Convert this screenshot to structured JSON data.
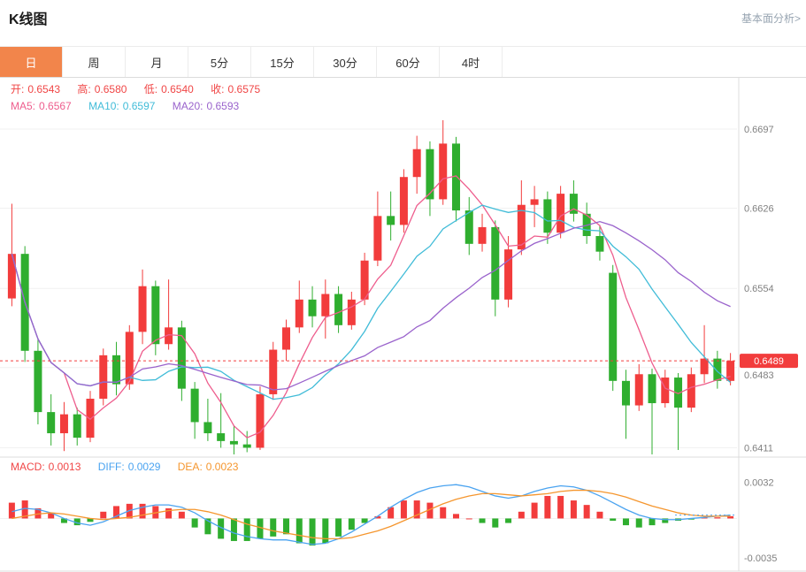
{
  "header": {
    "title": "K线图",
    "link": "基本面分析>"
  },
  "tabs": {
    "active_index": 0,
    "items": [
      {
        "label": "日"
      },
      {
        "label": "周"
      },
      {
        "label": "月"
      },
      {
        "label": "5分"
      },
      {
        "label": "15分"
      },
      {
        "label": "30分"
      },
      {
        "label": "60分"
      },
      {
        "label": "4时"
      }
    ]
  },
  "info": {
    "ohlc": [
      {
        "label": "开:",
        "value": "0.6543"
      },
      {
        "label": "高:",
        "value": "0.6580"
      },
      {
        "label": "低:",
        "value": "0.6540"
      },
      {
        "label": "收:",
        "value": "0.6575"
      }
    ],
    "ma": [
      {
        "label": "MA5:",
        "value": "0.6567"
      },
      {
        "label": "MA10:",
        "value": "0.6597"
      },
      {
        "label": "MA20:",
        "value": "0.6593"
      }
    ]
  },
  "macd_info": [
    {
      "label": "MACD:",
      "value": "0.0013"
    },
    {
      "label": "DIFF:",
      "value": "0.0029"
    },
    {
      "label": "DEA:",
      "value": "0.0023"
    }
  ],
  "axis": {
    "main_labels": [
      "0.6697",
      "0.6626",
      "0.6554",
      "0.6483",
      "0.6411"
    ],
    "macd_labels": [
      "0.0032",
      "-0.0035"
    ],
    "last_price": "0.6489"
  },
  "colors": {
    "accent": "#f2854b",
    "up": "#f23c3c",
    "down": "#2fae2f",
    "price_badge": "#f23c3c",
    "ohlc_text": "#f04646",
    "ma5": "#ee5d8d",
    "ma10": "#41bcd8",
    "ma20": "#9a63cc",
    "diff": "#4aa3f0",
    "dea": "#f5962e",
    "axis_text": "#808080",
    "grid": "#f1f1f1",
    "border": "#dcdcdc",
    "link": "#97a4b1"
  },
  "chart_data": {
    "type": "candlestick",
    "title": "K线图",
    "legend": [
      "MA5",
      "MA10",
      "MA20"
    ],
    "ma_windows": [
      5,
      10,
      20
    ],
    "price_line": 0.6489,
    "y_axis_labels": [
      "0.6697",
      "0.6626",
      "0.6554",
      "0.6483",
      "0.6411"
    ],
    "y_domain": [
      0.6405,
      0.6724
    ],
    "ohlc": [
      [
        0.6545,
        0.663,
        0.6538,
        0.6585
      ],
      [
        0.6585,
        0.6592,
        0.6488,
        0.6498
      ],
      [
        0.6498,
        0.6508,
        0.6432,
        0.6443
      ],
      [
        0.6443,
        0.6459,
        0.6413,
        0.6424
      ],
      [
        0.6424,
        0.6452,
        0.6408,
        0.6441
      ],
      [
        0.6441,
        0.6447,
        0.6413,
        0.642
      ],
      [
        0.642,
        0.6462,
        0.6416,
        0.6455
      ],
      [
        0.6455,
        0.65,
        0.6449,
        0.6494
      ],
      [
        0.6494,
        0.6506,
        0.6458,
        0.6468
      ],
      [
        0.6468,
        0.6521,
        0.6463,
        0.6515
      ],
      [
        0.6515,
        0.6571,
        0.6504,
        0.6556
      ],
      [
        0.6556,
        0.6561,
        0.6494,
        0.6504
      ],
      [
        0.6504,
        0.6562,
        0.6499,
        0.6519
      ],
      [
        0.6519,
        0.6525,
        0.6453,
        0.6464
      ],
      [
        0.6464,
        0.647,
        0.6419,
        0.6434
      ],
      [
        0.6434,
        0.6455,
        0.6417,
        0.6424
      ],
      [
        0.6424,
        0.646,
        0.6411,
        0.6417
      ],
      [
        0.6417,
        0.6431,
        0.6405,
        0.6414
      ],
      [
        0.6414,
        0.6426,
        0.6407,
        0.6411
      ],
      [
        0.6411,
        0.6466,
        0.6409,
        0.6459
      ],
      [
        0.6459,
        0.6506,
        0.6454,
        0.6499
      ],
      [
        0.6499,
        0.6526,
        0.6489,
        0.6519
      ],
      [
        0.6519,
        0.6561,
        0.6514,
        0.6544
      ],
      [
        0.6544,
        0.6556,
        0.6519,
        0.6529
      ],
      [
        0.6529,
        0.6562,
        0.6509,
        0.6549
      ],
      [
        0.6549,
        0.6556,
        0.6514,
        0.6521
      ],
      [
        0.6521,
        0.6551,
        0.6517,
        0.6544
      ],
      [
        0.6544,
        0.6586,
        0.6539,
        0.6579
      ],
      [
        0.6579,
        0.6641,
        0.6574,
        0.6619
      ],
      [
        0.6619,
        0.6641,
        0.6597,
        0.6611
      ],
      [
        0.6611,
        0.6661,
        0.6604,
        0.6654
      ],
      [
        0.6654,
        0.6691,
        0.6639,
        0.6679
      ],
      [
        0.6679,
        0.6686,
        0.6619,
        0.6634
      ],
      [
        0.6634,
        0.6705,
        0.6629,
        0.6684
      ],
      [
        0.6684,
        0.669,
        0.6614,
        0.6624
      ],
      [
        0.6624,
        0.6636,
        0.6584,
        0.6594
      ],
      [
        0.6594,
        0.6621,
        0.6587,
        0.6609
      ],
      [
        0.6609,
        0.6615,
        0.6529,
        0.6544
      ],
      [
        0.6544,
        0.6601,
        0.6537,
        0.6589
      ],
      [
        0.6589,
        0.6651,
        0.6584,
        0.6629
      ],
      [
        0.6629,
        0.6646,
        0.6609,
        0.6634
      ],
      [
        0.6634,
        0.6641,
        0.6594,
        0.6604
      ],
      [
        0.6604,
        0.6646,
        0.6599,
        0.6639
      ],
      [
        0.6639,
        0.6651,
        0.6614,
        0.6621
      ],
      [
        0.6621,
        0.6631,
        0.6594,
        0.6601
      ],
      [
        0.6601,
        0.6611,
        0.6579,
        0.6587
      ],
      [
        0.6568,
        0.6575,
        0.6462,
        0.6471
      ],
      [
        0.6471,
        0.6481,
        0.6419,
        0.6449
      ],
      [
        0.6449,
        0.6486,
        0.6444,
        0.6477
      ],
      [
        0.6477,
        0.6482,
        0.6405,
        0.6451
      ],
      [
        0.6451,
        0.6481,
        0.6447,
        0.6474
      ],
      [
        0.6474,
        0.6478,
        0.6409,
        0.6447
      ],
      [
        0.6447,
        0.6483,
        0.6443,
        0.6477
      ],
      [
        0.6477,
        0.6521,
        0.6469,
        0.6491
      ],
      [
        0.6491,
        0.6498,
        0.6464,
        0.6471
      ],
      [
        0.6471,
        0.6496,
        0.6467,
        0.6489
      ]
    ],
    "macd": {
      "y_axis_labels": [
        "0.0032",
        "-0.0035"
      ],
      "y_domain": [
        -0.0042,
        0.0038
      ],
      "hist": [
        0.0014,
        0.0016,
        0.0009,
        0.0005,
        -0.0004,
        -0.0006,
        -0.0003,
        0.0006,
        0.0011,
        0.0013,
        0.0013,
        0.0011,
        0.0009,
        0.0006,
        -0.0008,
        -0.0014,
        -0.0018,
        -0.002,
        -0.002,
        -0.0018,
        -0.0016,
        -0.0014,
        -0.0022,
        -0.0024,
        -0.0022,
        -0.0016,
        -0.001,
        -0.0004,
        0.0002,
        0.001,
        0.0016,
        0.0016,
        0.0014,
        0.001,
        0.0004,
        0.0,
        -0.0004,
        -0.0008,
        -0.0004,
        0.0006,
        0.0014,
        0.002,
        0.002,
        0.0016,
        0.0012,
        0.0006,
        -0.0002,
        -0.0006,
        -0.0008,
        -0.0006,
        -0.0004,
        -0.0002,
        -0.0001,
        0.0001,
        0.0001,
        0.0002
      ],
      "diff": [
        0.0006,
        0.0009,
        0.0008,
        0.0005,
        0.0,
        -0.0004,
        -0.0006,
        -0.0003,
        0.0002,
        0.0007,
        0.001,
        0.0012,
        0.0012,
        0.001,
        0.0005,
        -0.0002,
        -0.0008,
        -0.0013,
        -0.0016,
        -0.0018,
        -0.0019,
        -0.0019,
        -0.0021,
        -0.0023,
        -0.0022,
        -0.0018,
        -0.0012,
        -0.0005,
        0.0002,
        0.001,
        0.0017,
        0.0023,
        0.0027,
        0.0029,
        0.003,
        0.0028,
        0.0024,
        0.002,
        0.0018,
        0.002,
        0.0024,
        0.0027,
        0.0029,
        0.0028,
        0.0025,
        0.002,
        0.0014,
        0.0008,
        0.0003,
        0.0,
        -0.0001,
        -0.0001,
        0.0,
        0.0001,
        0.0002,
        0.0003
      ],
      "dea": [
        0.0,
        0.0002,
        0.0004,
        0.0005,
        0.0004,
        0.0002,
        0.0,
        -0.0001,
        0.0,
        0.0001,
        0.0003,
        0.0005,
        0.0007,
        0.0008,
        0.0008,
        0.0006,
        0.0003,
        -0.0001,
        -0.0005,
        -0.0008,
        -0.0011,
        -0.0013,
        -0.0015,
        -0.0017,
        -0.0018,
        -0.0018,
        -0.0017,
        -0.0014,
        -0.0011,
        -0.0007,
        -0.0002,
        0.0003,
        0.0008,
        0.0013,
        0.0017,
        0.002,
        0.0022,
        0.0022,
        0.0021,
        0.002,
        0.0021,
        0.0022,
        0.0024,
        0.0025,
        0.0025,
        0.0024,
        0.0022,
        0.0019,
        0.0015,
        0.0011,
        0.0008,
        0.0005,
        0.0003,
        0.0002,
        0.0002,
        0.0002
      ]
    }
  }
}
